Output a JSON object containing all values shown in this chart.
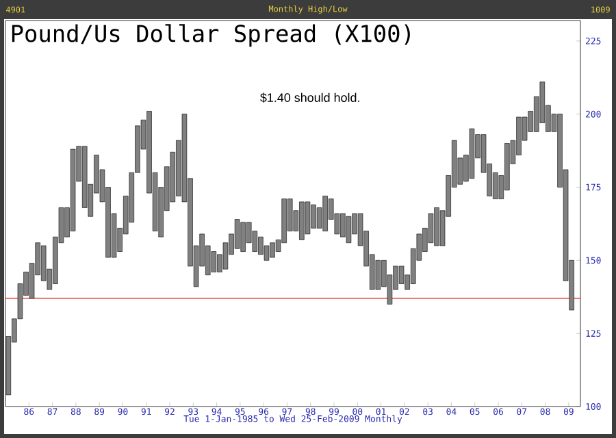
{
  "chart_data": {
    "type": "bar",
    "title": "Pound/Us Dollar Spread (X100)",
    "subtitle": "Monthly High/Low",
    "xlabel": "Tue 1-Jan-1985 to Wed 25-Feb-2009 Monthly",
    "annotations": [
      "4901",
      "1009",
      "$1.40 should hold."
    ],
    "color": "#808080",
    "x": [
      "1985-01",
      "1985-04",
      "1985-07",
      "1985-10",
      "1986-01",
      "1986-04",
      "1986-07",
      "1986-10",
      "1987-01",
      "1987-04",
      "1987-07",
      "1987-10",
      "1988-01",
      "1988-04",
      "1988-07",
      "1988-10",
      "1989-01",
      "1989-04",
      "1989-07",
      "1989-10",
      "1990-01",
      "1990-04",
      "1990-07",
      "1990-10",
      "1991-01",
      "1991-04",
      "1991-07",
      "1991-10",
      "1992-01",
      "1992-04",
      "1992-07",
      "1992-10",
      "1993-01",
      "1993-04",
      "1993-07",
      "1993-10",
      "1994-01",
      "1994-04",
      "1994-07",
      "1994-10",
      "1995-01",
      "1995-04",
      "1995-07",
      "1995-10",
      "1996-01",
      "1996-04",
      "1996-07",
      "1996-10",
      "1997-01",
      "1997-04",
      "1997-07",
      "1997-10",
      "1998-01",
      "1998-04",
      "1998-07",
      "1998-10",
      "1999-01",
      "1999-04",
      "1999-07",
      "1999-10",
      "2000-01",
      "2000-04",
      "2000-07",
      "2000-10",
      "2001-01",
      "2001-04",
      "2001-07",
      "2001-10",
      "2002-01",
      "2002-04",
      "2002-07",
      "2002-10",
      "2003-01",
      "2003-04",
      "2003-07",
      "2003-10",
      "2004-01",
      "2004-04",
      "2004-07",
      "2004-10",
      "2005-01",
      "2005-04",
      "2005-07",
      "2005-10",
      "2006-01",
      "2006-04",
      "2006-07",
      "2006-10",
      "2007-01",
      "2007-04",
      "2007-07",
      "2007-10",
      "2008-01",
      "2008-04",
      "2008-07",
      "2008-10",
      "2009-01"
    ],
    "base": [
      104,
      122,
      130,
      138,
      137,
      145,
      143,
      140,
      142,
      156,
      158,
      160,
      177,
      168,
      165,
      173,
      170,
      151,
      151,
      153,
      159,
      163,
      180,
      188,
      173,
      160,
      158,
      167,
      170,
      172,
      170,
      148,
      141,
      148,
      145,
      146,
      146,
      147,
      152,
      154,
      153,
      156,
      153,
      152,
      150,
      151,
      153,
      156,
      160,
      160,
      157,
      159,
      161,
      161,
      160,
      164,
      159,
      158,
      156,
      159,
      155,
      148,
      140,
      140,
      141,
      135,
      140,
      142,
      140,
      142,
      150,
      153,
      156,
      155,
      155,
      165,
      175,
      176,
      177,
      178,
      185,
      180,
      172,
      171,
      171,
      174,
      183,
      186,
      191,
      194,
      194,
      197,
      194,
      194,
      175,
      143,
      133
    ],
    "values": [
      20,
      8,
      12,
      8,
      12,
      11,
      12,
      7,
      16,
      12,
      10,
      28,
      12,
      21,
      11,
      13,
      11,
      24,
      15,
      8,
      13,
      17,
      16,
      10,
      28,
      20,
      17,
      15,
      17,
      19,
      30,
      30,
      14,
      11,
      10,
      7,
      6,
      9,
      7,
      10,
      10,
      7,
      7,
      6,
      5,
      5,
      4,
      15,
      11,
      7,
      13,
      11,
      8,
      7,
      12,
      7,
      7,
      8,
      9,
      7,
      11,
      12,
      12,
      10,
      9,
      10,
      8,
      6,
      5,
      12,
      9,
      8,
      10,
      13,
      12,
      14,
      16,
      9,
      9,
      17,
      8,
      13,
      11,
      9,
      8,
      16,
      8,
      13,
      8,
      7,
      12,
      14,
      9,
      6,
      25,
      38,
      17
    ],
    "xlim": [
      "1985-01",
      "2009-07"
    ],
    "xticks": [
      {
        "value": "1986",
        "label": "86"
      },
      {
        "value": "1987",
        "label": "87"
      },
      {
        "value": "1988",
        "label": "88"
      },
      {
        "value": "1989",
        "label": "89"
      },
      {
        "value": "1990",
        "label": "90"
      },
      {
        "value": "1991",
        "label": "91"
      },
      {
        "value": "1992",
        "label": "92"
      },
      {
        "value": "1993",
        "label": "93"
      },
      {
        "value": "1994",
        "label": "94"
      },
      {
        "value": "1995",
        "label": "95"
      },
      {
        "value": "1996",
        "label": "96"
      },
      {
        "value": "1997",
        "label": "97"
      },
      {
        "value": "1998",
        "label": "98"
      },
      {
        "value": "1999",
        "label": "99"
      },
      {
        "value": "2000",
        "label": "00"
      },
      {
        "value": "2001",
        "label": "01"
      },
      {
        "value": "2002",
        "label": "02"
      },
      {
        "value": "2003",
        "label": "03"
      },
      {
        "value": "2004",
        "label": "04"
      },
      {
        "value": "2005",
        "label": "05"
      },
      {
        "value": "2006",
        "label": "06"
      },
      {
        "value": "2007",
        "label": "07"
      },
      {
        "value": "2008",
        "label": "08"
      },
      {
        "value": "2009",
        "label": "09"
      }
    ],
    "ylim": [
      100,
      232
    ],
    "yticks": [
      100,
      125,
      150,
      175,
      200,
      225
    ],
    "ref_lines": [
      {
        "axis": "y",
        "value": 137,
        "color": "#e02020"
      }
    ]
  }
}
